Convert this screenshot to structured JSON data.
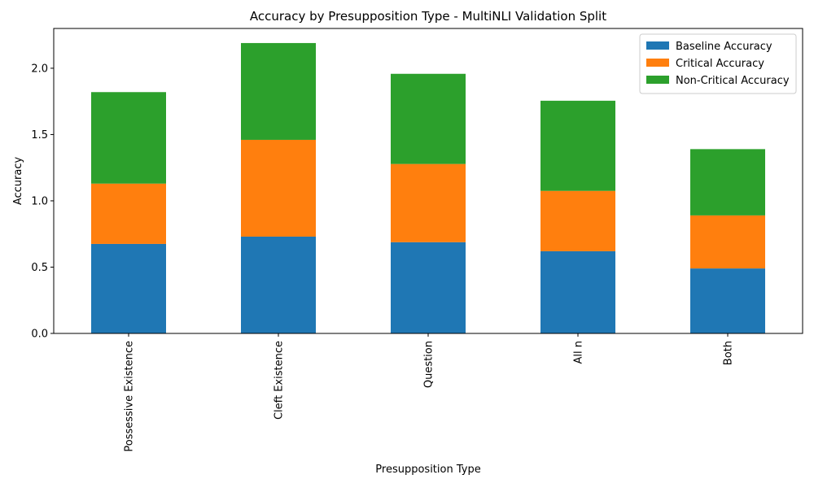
{
  "chart_data": {
    "type": "bar",
    "stacked": true,
    "title": "Accuracy by Presupposition Type - MultiNLI Validation Split",
    "xlabel": "Presupposition Type",
    "ylabel": "Accuracy",
    "categories": [
      "Possessive Existence",
      "Cleft Existence",
      "Question",
      "All n",
      "Both"
    ],
    "series": [
      {
        "name": "Baseline Accuracy",
        "color": "#1f77b4",
        "values": [
          0.675,
          0.73,
          0.688,
          0.62,
          0.49
        ]
      },
      {
        "name": "Critical Accuracy",
        "color": "#ff7f0e",
        "values": [
          0.455,
          0.73,
          0.59,
          0.455,
          0.4
        ]
      },
      {
        "name": "Non-Critical Accuracy",
        "color": "#2ca02c",
        "values": [
          0.69,
          0.73,
          0.68,
          0.68,
          0.5
        ]
      }
    ],
    "ylim": [
      0,
      2.3
    ],
    "yticks": [
      "0.0",
      "0.5",
      "1.0",
      "1.5",
      "2.0"
    ],
    "grid": false,
    "legend_position": "top-right",
    "x_tick_rotation": "vertical"
  }
}
